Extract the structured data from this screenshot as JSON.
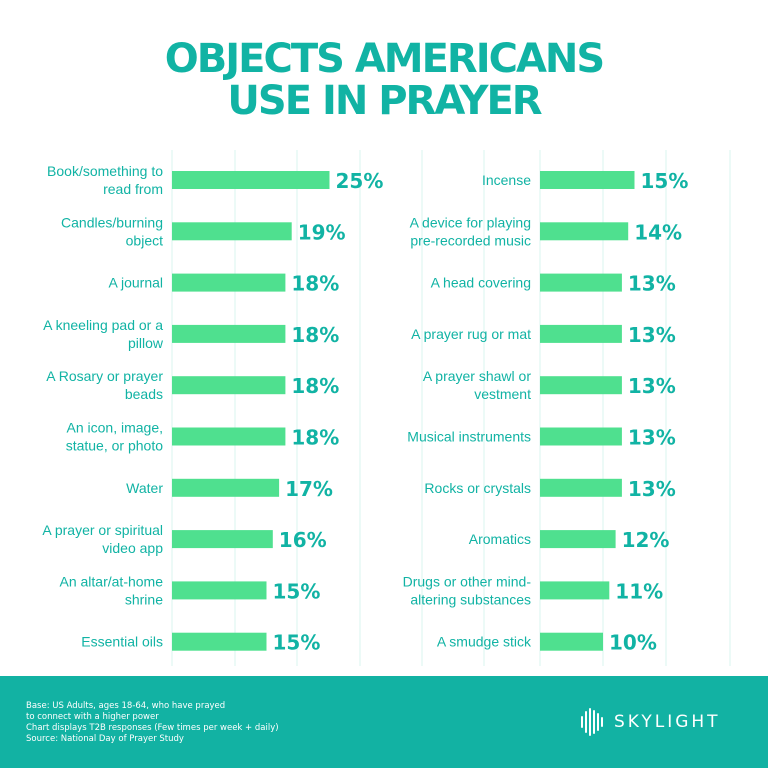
{
  "title_line1": "OBJECTS AMERICANS",
  "title_line2": "USE IN PRAYER",
  "colors": {
    "accent": "#11b3a4",
    "bar": "#4fe08f",
    "grid": "#d9f4ef",
    "footer": "#12b2a3"
  },
  "chart_data": [
    {
      "type": "bar",
      "orientation": "horizontal",
      "unit": "%",
      "grid": true,
      "categories": [
        [
          "Book/something to",
          "read from"
        ],
        [
          "Candles/burning",
          "object"
        ],
        [
          "A journal"
        ],
        [
          "A kneeling pad or a",
          "pillow"
        ],
        [
          "A Rosary or prayer",
          "beads"
        ],
        [
          "An icon, image,",
          "statue, or photo"
        ],
        [
          "Water"
        ],
        [
          "A prayer or spiritual",
          "video app"
        ],
        [
          "An altar/at-home",
          "shrine"
        ],
        [
          "Essential oils"
        ]
      ],
      "values": [
        25,
        19,
        18,
        18,
        18,
        18,
        17,
        16,
        15,
        15
      ],
      "labels": [
        "25%",
        "19%",
        "18%",
        "18%",
        "18%",
        "18%",
        "17%",
        "16%",
        "15%",
        "15%"
      ]
    },
    {
      "type": "bar",
      "orientation": "horizontal",
      "unit": "%",
      "grid": true,
      "categories": [
        [
          "Incense"
        ],
        [
          "A device for playing",
          "pre-recorded music"
        ],
        [
          "A head covering"
        ],
        [
          "A prayer rug or mat"
        ],
        [
          "A prayer shawl or",
          "vestment"
        ],
        [
          "Musical instruments"
        ],
        [
          "Rocks or crystals"
        ],
        [
          "Aromatics"
        ],
        [
          "Drugs or other mind-",
          "altering substances"
        ],
        [
          "A smudge stick"
        ]
      ],
      "values": [
        15,
        14,
        13,
        13,
        13,
        13,
        13,
        12,
        11,
        10
      ],
      "labels": [
        "15%",
        "14%",
        "13%",
        "13%",
        "13%",
        "13%",
        "13%",
        "12%",
        "11%",
        "10%"
      ]
    }
  ],
  "footer": {
    "notes": [
      "Base: US Adults, ages 18-64, who have prayed",
      "to connect with a higher power",
      "Chart displays T2B responses (Few times per week + daily)",
      "Source: National Day of Prayer Study"
    ],
    "logo_text": "SKYLIGHT"
  }
}
